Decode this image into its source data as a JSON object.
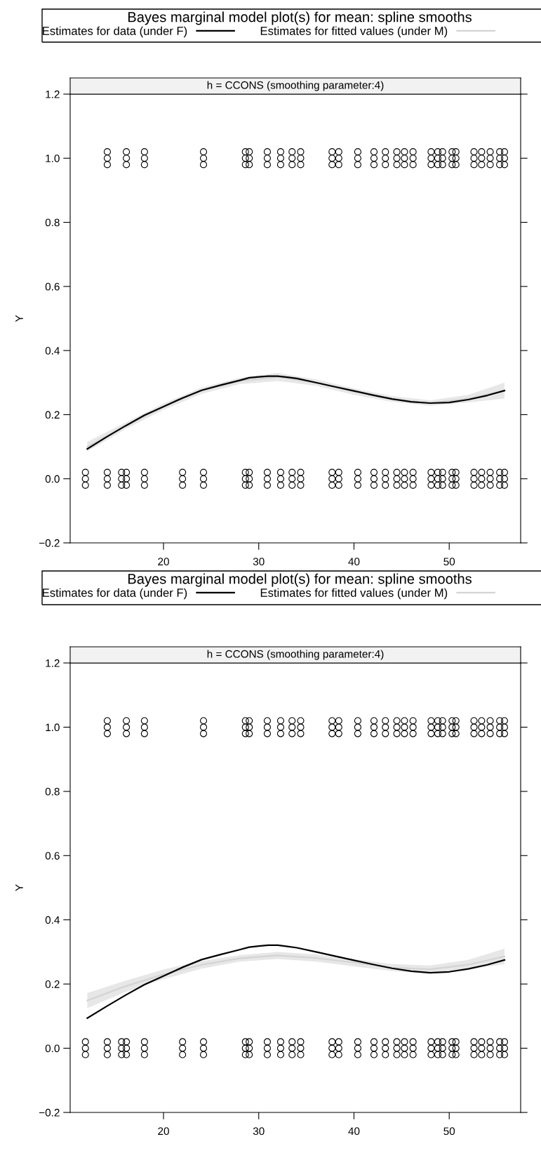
{
  "chart_data": [
    {
      "type": "scatter",
      "title": "Bayes marginal model plot(s) for mean: spline smooths",
      "subtitle": "h = CCONS (smoothing parameter:4)",
      "ylabel": "Y",
      "xlim": [
        10.2,
        57.5
      ],
      "ylim": [
        -0.2,
        1.2
      ],
      "xticks": [
        20,
        30,
        40,
        50
      ],
      "yticks": [
        {
          "value": -0.2,
          "label": "−0.2"
        },
        {
          "value": 0,
          "label": "0.0"
        },
        0.2,
        0.4,
        0.6,
        0.8,
        {
          "value": 1,
          "label": "1.0"
        },
        1.2
      ],
      "legend": "top",
      "series": [
        {
          "marker": "circle",
          "color": "#000000",
          "x": [
            11.8,
            11.8,
            11.8,
            14.1,
            14.1,
            14.1,
            15.6,
            15.6,
            15.6,
            16.1,
            16.1,
            16.1,
            18.0,
            18.0,
            18.0,
            22.0,
            22.0,
            22.0,
            24.2,
            24.2,
            24.2,
            28.6,
            28.6,
            28.6,
            29.0,
            29.0,
            29.0,
            30.9,
            30.9,
            30.9,
            32.3,
            32.3,
            32.3,
            33.5,
            33.5,
            33.5,
            34.4,
            34.4,
            34.4,
            37.7,
            37.7,
            37.7,
            38.4,
            38.4,
            38.4,
            40.4,
            40.4,
            40.4,
            42.1,
            42.1,
            42.1,
            43.3,
            43.3,
            43.3,
            44.5,
            44.5,
            44.5,
            45.3,
            45.3,
            45.3,
            46.2,
            46.2,
            46.2,
            48.1,
            48.1,
            48.1,
            48.8,
            48.8,
            48.8,
            49.3,
            49.3,
            49.3,
            50.3,
            50.3,
            50.3,
            50.7,
            50.7,
            50.7,
            52.6,
            52.6,
            52.6,
            53.4,
            53.4,
            53.4,
            54.3,
            54.3,
            54.3,
            55.3,
            55.3,
            55.3,
            55.8,
            55.8,
            55.8,
            14.1,
            14.1,
            14.1,
            16.1,
            16.1,
            16.1,
            18.0,
            18.0,
            18.0,
            24.2,
            24.2,
            24.2,
            28.6,
            28.6,
            28.6,
            29.0,
            29.0,
            29.0,
            30.9,
            30.9,
            30.9,
            32.3,
            32.3,
            32.3,
            33.5,
            33.5,
            33.5,
            34.4,
            34.4,
            34.4,
            37.7,
            37.7,
            37.7,
            38.4,
            38.4,
            38.4,
            40.4,
            40.4,
            40.4,
            42.1,
            42.1,
            42.1,
            43.3,
            43.3,
            43.3,
            44.5,
            44.5,
            44.5,
            45.3,
            45.3,
            45.3,
            46.2,
            46.2,
            46.2,
            48.1,
            48.1,
            48.1,
            48.8,
            48.8,
            48.8,
            49.3,
            49.3,
            49.3,
            50.3,
            50.3,
            50.3,
            50.7,
            50.7,
            50.7,
            52.6,
            52.6,
            52.6,
            53.4,
            53.4,
            53.4,
            54.3,
            54.3,
            54.3,
            55.3,
            55.3,
            55.3,
            55.8,
            55.8,
            55.8
          ],
          "values": [
            -0.02,
            0,
            0.02,
            -0.02,
            0,
            0.02,
            -0.02,
            0,
            0.02,
            -0.02,
            0,
            0.02,
            -0.02,
            0,
            0.02,
            -0.02,
            0,
            0.02,
            -0.02,
            0,
            0.02,
            -0.02,
            0,
            0.02,
            -0.02,
            0,
            0.02,
            -0.02,
            0,
            0.02,
            -0.02,
            0,
            0.02,
            -0.02,
            0,
            0.02,
            -0.02,
            0,
            0.02,
            -0.02,
            0,
            0.02,
            -0.02,
            0,
            0.02,
            -0.02,
            0,
            0.02,
            -0.02,
            0,
            0.02,
            -0.02,
            0,
            0.02,
            -0.02,
            0,
            0.02,
            -0.02,
            0,
            0.02,
            -0.02,
            0,
            0.02,
            -0.02,
            0,
            0.02,
            -0.02,
            0,
            0.02,
            -0.02,
            0,
            0.02,
            -0.02,
            0,
            0.02,
            -0.02,
            0,
            0.02,
            -0.02,
            0,
            0.02,
            -0.02,
            0,
            0.02,
            -0.02,
            0,
            0.02,
            -0.02,
            0,
            0.02,
            -0.02,
            0,
            0.02,
            0.98,
            1,
            1.02,
            0.98,
            1,
            1.02,
            0.98,
            1,
            1.02,
            0.98,
            1,
            1.02,
            0.98,
            1,
            1.02,
            0.98,
            1,
            1.02,
            0.98,
            1,
            1.02,
            0.98,
            1,
            1.02,
            0.98,
            1,
            1.02,
            0.98,
            1,
            1.02,
            0.98,
            1,
            1.02,
            0.98,
            1,
            1.02,
            0.98,
            1,
            1.02,
            0.98,
            1,
            1.02,
            0.98,
            1,
            1.02,
            0.98,
            1,
            1.02,
            0.98,
            1,
            1.02,
            0.98,
            1,
            1.02,
            0.98,
            1,
            1.02,
            0.98,
            1,
            1.02,
            0.98,
            1,
            1.02,
            0.98,
            1,
            1.02,
            0.98,
            1,
            1.02,
            0.98,
            1,
            1.02,
            0.98,
            1,
            1.02,
            0.98,
            1,
            1.02,
            0.98,
            1,
            1.02,
            0.98,
            1,
            1.02
          ]
        },
        {
          "type": "line",
          "name": "Estimates for data (under F)",
          "color": "#000000",
          "x": [
            12,
            14,
            16,
            18,
            20,
            22,
            24,
            26,
            28,
            29,
            30,
            31,
            32,
            33,
            34,
            36,
            38,
            40,
            42,
            44,
            46,
            48,
            50,
            52,
            54,
            55.8
          ],
          "values": [
            0.093,
            0.13,
            0.165,
            0.198,
            0.225,
            0.252,
            0.276,
            0.292,
            0.307,
            0.315,
            0.318,
            0.32,
            0.32,
            0.317,
            0.313,
            0.3,
            0.287,
            0.274,
            0.261,
            0.249,
            0.24,
            0.236,
            0.238,
            0.247,
            0.26,
            0.275
          ]
        },
        {
          "type": "line",
          "name": "Estimates for fitted values (under M)",
          "color": "#d4d4d4",
          "x": [
            12,
            16,
            20,
            24,
            28,
            32,
            36,
            40,
            44,
            48,
            52,
            55.8
          ],
          "values": [
            0.1,
            0.165,
            0.225,
            0.275,
            0.305,
            0.318,
            0.3,
            0.272,
            0.249,
            0.236,
            0.25,
            0.275
          ],
          "lower": [
            0.085,
            0.155,
            0.215,
            0.265,
            0.295,
            0.305,
            0.29,
            0.262,
            0.24,
            0.228,
            0.238,
            0.25
          ],
          "upper": [
            0.115,
            0.175,
            0.235,
            0.285,
            0.315,
            0.33,
            0.31,
            0.282,
            0.258,
            0.245,
            0.262,
            0.3
          ]
        }
      ]
    },
    {
      "type": "scatter",
      "title": "Bayes marginal model plot(s) for mean: spline smooths",
      "subtitle": "h = CCONS (smoothing parameter:4)",
      "ylabel": "Y",
      "xlim": [
        10.2,
        57.5
      ],
      "ylim": [
        -0.2,
        1.2
      ],
      "xticks": [
        20,
        30,
        40,
        50
      ],
      "yticks": [
        {
          "value": -0.2,
          "label": "−0.2"
        },
        {
          "value": 0,
          "label": "0.0"
        },
        0.2,
        0.4,
        0.6,
        0.8,
        {
          "value": 1,
          "label": "1.0"
        },
        1.2
      ],
      "legend": "top",
      "series": [
        {
          "marker": "circle",
          "color": "#000000",
          "x": [
            11.8,
            11.8,
            11.8,
            14.1,
            14.1,
            14.1,
            15.6,
            15.6,
            15.6,
            16.1,
            16.1,
            16.1,
            18.0,
            18.0,
            18.0,
            22.0,
            22.0,
            22.0,
            24.2,
            24.2,
            24.2,
            28.6,
            28.6,
            28.6,
            29.0,
            29.0,
            29.0,
            30.9,
            30.9,
            30.9,
            32.3,
            32.3,
            32.3,
            33.5,
            33.5,
            33.5,
            34.4,
            34.4,
            34.4,
            37.7,
            37.7,
            37.7,
            38.4,
            38.4,
            38.4,
            40.4,
            40.4,
            40.4,
            42.1,
            42.1,
            42.1,
            43.3,
            43.3,
            43.3,
            44.5,
            44.5,
            44.5,
            45.3,
            45.3,
            45.3,
            46.2,
            46.2,
            46.2,
            48.1,
            48.1,
            48.1,
            48.8,
            48.8,
            48.8,
            49.3,
            49.3,
            49.3,
            50.3,
            50.3,
            50.3,
            50.7,
            50.7,
            50.7,
            52.6,
            52.6,
            52.6,
            53.4,
            53.4,
            53.4,
            54.3,
            54.3,
            54.3,
            55.3,
            55.3,
            55.3,
            55.8,
            55.8,
            55.8,
            14.1,
            14.1,
            14.1,
            16.1,
            16.1,
            16.1,
            18.0,
            18.0,
            18.0,
            24.2,
            24.2,
            24.2,
            28.6,
            28.6,
            28.6,
            29.0,
            29.0,
            29.0,
            30.9,
            30.9,
            30.9,
            32.3,
            32.3,
            32.3,
            33.5,
            33.5,
            33.5,
            34.4,
            34.4,
            34.4,
            37.7,
            37.7,
            37.7,
            38.4,
            38.4,
            38.4,
            40.4,
            40.4,
            40.4,
            42.1,
            42.1,
            42.1,
            43.3,
            43.3,
            43.3,
            44.5,
            44.5,
            44.5,
            45.3,
            45.3,
            45.3,
            46.2,
            46.2,
            46.2,
            48.1,
            48.1,
            48.1,
            48.8,
            48.8,
            48.8,
            49.3,
            49.3,
            49.3,
            50.3,
            50.3,
            50.3,
            50.7,
            50.7,
            50.7,
            52.6,
            52.6,
            52.6,
            53.4,
            53.4,
            53.4,
            54.3,
            54.3,
            54.3,
            55.3,
            55.3,
            55.3,
            55.8,
            55.8,
            55.8
          ],
          "values": [
            -0.02,
            0,
            0.02,
            -0.02,
            0,
            0.02,
            -0.02,
            0,
            0.02,
            -0.02,
            0,
            0.02,
            -0.02,
            0,
            0.02,
            -0.02,
            0,
            0.02,
            -0.02,
            0,
            0.02,
            -0.02,
            0,
            0.02,
            -0.02,
            0,
            0.02,
            -0.02,
            0,
            0.02,
            -0.02,
            0,
            0.02,
            -0.02,
            0,
            0.02,
            -0.02,
            0,
            0.02,
            -0.02,
            0,
            0.02,
            -0.02,
            0,
            0.02,
            -0.02,
            0,
            0.02,
            -0.02,
            0,
            0.02,
            -0.02,
            0,
            0.02,
            -0.02,
            0,
            0.02,
            -0.02,
            0,
            0.02,
            -0.02,
            0,
            0.02,
            -0.02,
            0,
            0.02,
            -0.02,
            0,
            0.02,
            -0.02,
            0,
            0.02,
            -0.02,
            0,
            0.02,
            -0.02,
            0,
            0.02,
            -0.02,
            0,
            0.02,
            -0.02,
            0,
            0.02,
            -0.02,
            0,
            0.02,
            -0.02,
            0,
            0.02,
            -0.02,
            0,
            0.02,
            0.98,
            1,
            1.02,
            0.98,
            1,
            1.02,
            0.98,
            1,
            1.02,
            0.98,
            1,
            1.02,
            0.98,
            1,
            1.02,
            0.98,
            1,
            1.02,
            0.98,
            1,
            1.02,
            0.98,
            1,
            1.02,
            0.98,
            1,
            1.02,
            0.98,
            1,
            1.02,
            0.98,
            1,
            1.02,
            0.98,
            1,
            1.02,
            0.98,
            1,
            1.02,
            0.98,
            1,
            1.02,
            0.98,
            1,
            1.02,
            0.98,
            1,
            1.02,
            0.98,
            1,
            1.02,
            0.98,
            1,
            1.02,
            0.98,
            1,
            1.02,
            0.98,
            1,
            1.02,
            0.98,
            1,
            1.02,
            0.98,
            1,
            1.02,
            0.98,
            1,
            1.02,
            0.98,
            1,
            1.02,
            0.98,
            1,
            1.02,
            0.98,
            1,
            1.02,
            0.98,
            1,
            1.02,
            0.98,
            1,
            1.02
          ]
        },
        {
          "type": "line",
          "name": "Estimates for data (under F)",
          "color": "#000000",
          "x": [
            12,
            14,
            16,
            18,
            20,
            22,
            24,
            26,
            28,
            29,
            30,
            31,
            32,
            33,
            34,
            36,
            38,
            40,
            42,
            44,
            46,
            48,
            50,
            52,
            54,
            55.8
          ],
          "values": [
            0.094,
            0.13,
            0.165,
            0.198,
            0.225,
            0.252,
            0.276,
            0.292,
            0.307,
            0.315,
            0.318,
            0.321,
            0.321,
            0.317,
            0.313,
            0.3,
            0.287,
            0.274,
            0.261,
            0.249,
            0.24,
            0.235,
            0.238,
            0.247,
            0.26,
            0.275
          ]
        },
        {
          "type": "line",
          "name": "Estimates for fitted values (under M)",
          "color": "#d4d4d4",
          "x": [
            12,
            16,
            20,
            24,
            28,
            32,
            36,
            40,
            44,
            48,
            52,
            55.8
          ],
          "values": [
            0.149,
            0.193,
            0.23,
            0.26,
            0.28,
            0.289,
            0.281,
            0.267,
            0.251,
            0.246,
            0.26,
            0.286
          ],
          "lower": [
            0.125,
            0.175,
            0.215,
            0.248,
            0.27,
            0.278,
            0.27,
            0.255,
            0.24,
            0.233,
            0.245,
            0.262
          ],
          "upper": [
            0.172,
            0.21,
            0.245,
            0.272,
            0.29,
            0.3,
            0.292,
            0.278,
            0.262,
            0.258,
            0.275,
            0.31
          ]
        }
      ]
    }
  ]
}
